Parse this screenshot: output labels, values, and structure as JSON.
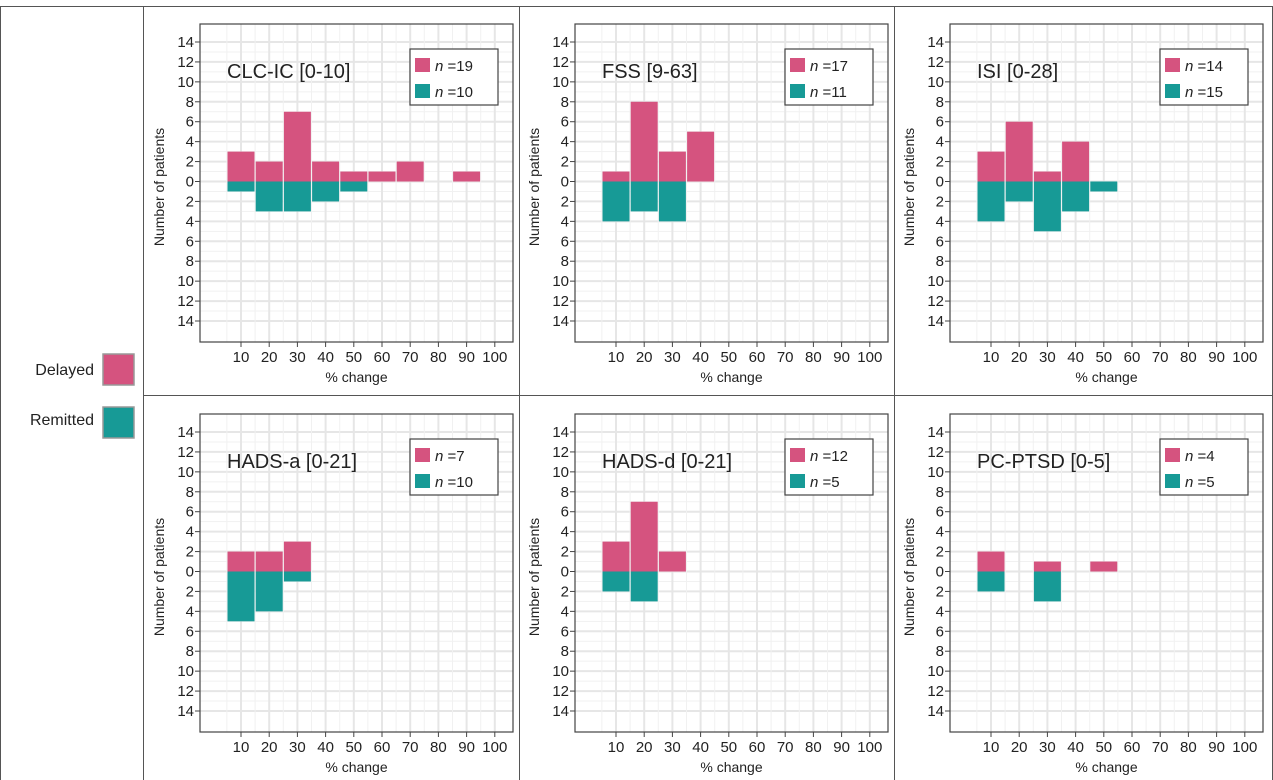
{
  "legend": {
    "delayed_label": "Delayed",
    "remitted_label": "Remitted"
  },
  "colors": {
    "delayed": "#d5537f",
    "remitted": "#179a96",
    "grid": "#e6e6e6",
    "frame": "#444444"
  },
  "chart_data": [
    {
      "type": "bar",
      "title": "CLC-IC [0-10]",
      "xlabel": "% change",
      "ylabel": "Number of patients",
      "x": [
        10,
        20,
        30,
        40,
        50,
        60,
        70,
        80,
        90,
        100
      ],
      "y_ticks": [
        "14",
        "12",
        "10",
        "8",
        "6",
        "4",
        "2",
        "0",
        "2",
        "4",
        "6",
        "8",
        "10",
        "12",
        "14"
      ],
      "ylim": [
        -14,
        14
      ],
      "grid": true,
      "legend_position": "top-right",
      "series": [
        {
          "name": "n =19",
          "n": "19",
          "values": [
            3,
            2,
            7,
            2,
            1,
            1,
            2,
            0,
            1,
            0
          ]
        },
        {
          "name": "n =10",
          "n": "10",
          "values": [
            1,
            3,
            3,
            2,
            1,
            0,
            0,
            0,
            0,
            0
          ]
        }
      ]
    },
    {
      "type": "bar",
      "title": "FSS [9-63]",
      "xlabel": "% change",
      "ylabel": "Number of patients",
      "x": [
        10,
        20,
        30,
        40,
        50,
        60,
        70,
        80,
        90,
        100
      ],
      "y_ticks": [
        "14",
        "12",
        "10",
        "8",
        "6",
        "4",
        "2",
        "0",
        "2",
        "4",
        "6",
        "8",
        "10",
        "12",
        "14"
      ],
      "ylim": [
        -14,
        14
      ],
      "grid": true,
      "legend_position": "top-right",
      "series": [
        {
          "name": "n =17",
          "n": "17",
          "values": [
            1,
            8,
            3,
            5,
            0,
            0,
            0,
            0,
            0,
            0
          ]
        },
        {
          "name": "n =11",
          "n": "11",
          "values": [
            4,
            3,
            4,
            0,
            0,
            0,
            0,
            0,
            0,
            0
          ]
        }
      ]
    },
    {
      "type": "bar",
      "title": "ISI [0-28]",
      "xlabel": "% change",
      "ylabel": "Number of patients",
      "x": [
        10,
        20,
        30,
        40,
        50,
        60,
        70,
        80,
        90,
        100
      ],
      "y_ticks": [
        "14",
        "12",
        "10",
        "8",
        "6",
        "4",
        "2",
        "0",
        "2",
        "4",
        "6",
        "8",
        "10",
        "12",
        "14"
      ],
      "ylim": [
        -14,
        14
      ],
      "grid": true,
      "legend_position": "top-right",
      "series": [
        {
          "name": "n =14",
          "n": "14",
          "values": [
            3,
            6,
            1,
            4,
            0,
            0,
            0,
            0,
            0,
            0
          ]
        },
        {
          "name": "n =15",
          "n": "15",
          "values": [
            4,
            2,
            5,
            3,
            1,
            0,
            0,
            0,
            0,
            0
          ]
        }
      ]
    },
    {
      "type": "bar",
      "title": "HADS-a [0-21]",
      "xlabel": "% change",
      "ylabel": "Number of patients",
      "x": [
        10,
        20,
        30,
        40,
        50,
        60,
        70,
        80,
        90,
        100
      ],
      "y_ticks": [
        "14",
        "12",
        "10",
        "8",
        "6",
        "4",
        "2",
        "0",
        "2",
        "4",
        "6",
        "8",
        "10",
        "12",
        "14"
      ],
      "ylim": [
        -14,
        14
      ],
      "grid": true,
      "legend_position": "top-right",
      "series": [
        {
          "name": "n =7",
          "n": "7",
          "values": [
            2,
            2,
            3,
            0,
            0,
            0,
            0,
            0,
            0,
            0
          ]
        },
        {
          "name": "n =10",
          "n": "10",
          "values": [
            5,
            4,
            1,
            0,
            0,
            0,
            0,
            0,
            0,
            0
          ]
        }
      ]
    },
    {
      "type": "bar",
      "title": "HADS-d [0-21]",
      "xlabel": "% change",
      "ylabel": "Number of patients",
      "x": [
        10,
        20,
        30,
        40,
        50,
        60,
        70,
        80,
        90,
        100
      ],
      "y_ticks": [
        "14",
        "12",
        "10",
        "8",
        "6",
        "4",
        "2",
        "0",
        "2",
        "4",
        "6",
        "8",
        "10",
        "12",
        "14"
      ],
      "ylim": [
        -14,
        14
      ],
      "grid": true,
      "legend_position": "top-right",
      "series": [
        {
          "name": "n =12",
          "n": "12",
          "values": [
            3,
            7,
            2,
            0,
            0,
            0,
            0,
            0,
            0,
            0
          ]
        },
        {
          "name": "n =5",
          "n": "5",
          "values": [
            2,
            3,
            0,
            0,
            0,
            0,
            0,
            0,
            0,
            0
          ]
        }
      ]
    },
    {
      "type": "bar",
      "title": "PC-PTSD [0-5]",
      "xlabel": "% change",
      "ylabel": "Number of patients",
      "x": [
        10,
        20,
        30,
        40,
        50,
        60,
        70,
        80,
        90,
        100
      ],
      "y_ticks": [
        "14",
        "12",
        "10",
        "8",
        "6",
        "4",
        "2",
        "0",
        "2",
        "4",
        "6",
        "8",
        "10",
        "12",
        "14"
      ],
      "ylim": [
        -14,
        14
      ],
      "grid": true,
      "legend_position": "top-right",
      "series": [
        {
          "name": "n =4",
          "n": "4",
          "values": [
            2,
            0,
            1,
            0,
            1,
            0,
            0,
            0,
            0,
            0
          ]
        },
        {
          "name": "n =5",
          "n": "5",
          "values": [
            2,
            0,
            3,
            0,
            0,
            0,
            0,
            0,
            0,
            0
          ]
        }
      ]
    }
  ]
}
